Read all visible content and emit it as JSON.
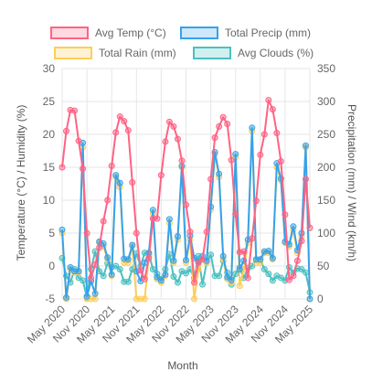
{
  "chart_data": {
    "type": "line",
    "x": [
      "2020-05",
      "2020-06",
      "2020-07",
      "2020-08",
      "2020-09",
      "2020-10",
      "2020-11",
      "2020-12",
      "2021-01",
      "2021-02",
      "2021-03",
      "2021-04",
      "2021-05",
      "2021-06",
      "2021-07",
      "2021-08",
      "2021-09",
      "2021-10",
      "2021-11",
      "2021-12",
      "2022-01",
      "2022-02",
      "2022-03",
      "2022-04",
      "2022-05",
      "2022-06",
      "2022-07",
      "2022-08",
      "2022-09",
      "2022-10",
      "2022-11",
      "2022-12",
      "2023-01",
      "2023-02",
      "2023-03",
      "2023-04",
      "2023-05",
      "2023-06",
      "2023-07",
      "2023-08",
      "2023-09",
      "2023-10",
      "2023-11",
      "2023-12",
      "2024-01",
      "2024-02",
      "2024-03",
      "2024-04",
      "2024-05",
      "2024-06",
      "2024-07",
      "2024-08",
      "2024-09",
      "2024-10",
      "2024-11",
      "2024-12",
      "2025-01",
      "2025-02",
      "2025-03",
      "2025-04",
      "2025-05"
    ],
    "x_tick_labels": [
      "May 2020",
      "Nov 2020",
      "May 2021",
      "Nov 2021",
      "May 2022",
      "Nov 2022",
      "May 2023",
      "Nov 2023",
      "May 2024",
      "Nov 2024",
      "May 2025"
    ],
    "xlabel": "Month",
    "ylabel_left": "Temperature (°C) / Humidity (%)",
    "ylabel_right": "Precipitation (mm) / Wind (km/h)",
    "ylim_left": [
      -5,
      30
    ],
    "ylim_right": [
      0,
      350
    ],
    "yticks_left": [
      -5,
      0,
      5,
      10,
      15,
      20,
      25,
      30
    ],
    "yticks_right": [
      0,
      50,
      100,
      150,
      200,
      250,
      300,
      350
    ],
    "grid": true,
    "legend_position": "top",
    "series": [
      {
        "name": "Avg Temp (°C)",
        "axis": "left",
        "color": "#ff6384",
        "values": [
          15,
          20.5,
          23.7,
          23.6,
          19,
          14.8,
          5,
          -1.8,
          0.2,
          2.8,
          6.8,
          10,
          15.2,
          20.3,
          22.7,
          22,
          20.6,
          12.7,
          5,
          -0.7,
          -2,
          1.2,
          7.2,
          7.2,
          13.8,
          18.9,
          21.9,
          21.2,
          19.3,
          16,
          9.3,
          5.2,
          -2.5,
          0.5,
          1,
          5.2,
          13.2,
          19.5,
          21.2,
          22.6,
          21.6,
          16.1,
          7.9,
          2.1,
          2.2,
          -1.8,
          4.2,
          9.9,
          16.9,
          20,
          25.2,
          23.8,
          20.2,
          15.9,
          7.8,
          -2.1,
          -1.5,
          0.8,
          3.8,
          13.2,
          5.8
        ]
      },
      {
        "name": "Total Precip (mm)",
        "axis": "right",
        "color": "#36a2eb",
        "values": [
          105,
          2,
          48,
          42,
          42,
          237,
          4,
          27,
          8,
          87,
          84,
          63,
          37,
          188,
          176,
          61,
          60,
          82,
          42,
          27,
          55,
          70,
          135,
          33,
          28,
          37,
          121,
          58,
          95,
          202,
          59,
          96,
          62,
          57,
          65,
          58,
          140,
          223,
          190,
          65,
          33,
          29,
          220,
          45,
          58,
          90,
          260,
          60,
          60,
          72,
          73,
          62,
          206,
          183,
          87,
          83,
          110,
          74,
          100,
          233,
          0
        ]
      },
      {
        "name": "Total Rain (mm)",
        "axis": "right",
        "color": "#ffcd56",
        "values": [
          100,
          0,
          45,
          40,
          40,
          230,
          0,
          0,
          0,
          85,
          80,
          60,
          35,
          185,
          170,
          55,
          55,
          80,
          0,
          0,
          0,
          65,
          130,
          30,
          25,
          35,
          115,
          55,
          90,
          200,
          55,
          90,
          0,
          45,
          60,
          55,
          135,
          220,
          185,
          60,
          30,
          25,
          215,
          20,
          45,
          85,
          255,
          55,
          55,
          70,
          70,
          60,
          200,
          180,
          85,
          80,
          105,
          70,
          95,
          230,
          0
        ]
      },
      {
        "name": "Avg Clouds (%)",
        "axis": "left",
        "color": "#4bc0c0",
        "values": [
          1.2,
          -1.5,
          -2.5,
          -0.5,
          -1.8,
          -2.2,
          -4.8,
          -0.5,
          2.2,
          -0.8,
          -1.5,
          0.4,
          -0.2,
          0,
          -0.5,
          -2.4,
          -2.4,
          -0.5,
          1.9,
          0,
          2,
          1.8,
          -0.5,
          -1.2,
          -2,
          -0.5,
          1.8,
          -1.6,
          -2.5,
          -0.8,
          -1.1,
          -0.5,
          -1.8,
          1.5,
          -2.8,
          0.5,
          1.7,
          -1.5,
          -1.5,
          0.8,
          -1,
          -2.8,
          -1.2,
          -0.2,
          -1.8,
          -0.3,
          0,
          1,
          1,
          -0.5,
          -1.2,
          -2.2,
          -1.5,
          -1.8,
          -2.2,
          -0.2,
          -1,
          -0.4,
          -0.5,
          -1,
          -4
        ]
      }
    ]
  }
}
